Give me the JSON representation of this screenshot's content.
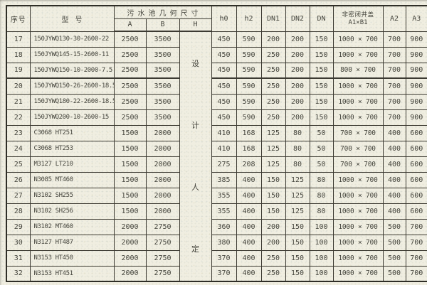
{
  "colors": {
    "paper": "#f0eee1",
    "grid": "#3c3a32",
    "text": "#45453d"
  },
  "table": {
    "header": {
      "serial": "序号",
      "model": "型号",
      "pool_dims_group": "污水池几何尺寸",
      "sub_a": "A",
      "sub_b": "B",
      "sub_h": "H",
      "h0": "h0",
      "h2": "h2",
      "dn1": "DN1",
      "dn2": "DN2",
      "dn": "DN",
      "cover_line1": "非密闭井盖",
      "cover_line2": "A1×B1",
      "a2": "A2",
      "a3": "A3"
    },
    "h_note_chars": [
      "设",
      "计",
      "人",
      "定"
    ],
    "rows": [
      [
        "17",
        "150JYWQ130-30-2600-22",
        "2500",
        "3500",
        "450",
        "590",
        "200",
        "200",
        "150",
        "1000 × 700",
        "700",
        "900"
      ],
      [
        "18",
        "150JYWQ145-15-2600-11",
        "2500",
        "3500",
        "450",
        "590",
        "250",
        "200",
        "150",
        "1000 × 700",
        "700",
        "900"
      ],
      [
        "19",
        "150JYWQ150-10-2000-7.5",
        "2500",
        "3500",
        "450",
        "590",
        "250",
        "200",
        "150",
        "800 × 700",
        "700",
        "900"
      ],
      [
        "20",
        "150JYWQ150-26-2600-18.5",
        "2500",
        "3500",
        "450",
        "590",
        "250",
        "200",
        "150",
        "1000 × 700",
        "700",
        "900"
      ],
      [
        "21",
        "150JYWQ180-22-2600-18.5",
        "2500",
        "3500",
        "450",
        "590",
        "250",
        "200",
        "150",
        "1000 × 700",
        "700",
        "900"
      ],
      [
        "22",
        "150JYWQ200-10-2600-15",
        "2500",
        "3500",
        "450",
        "590",
        "250",
        "200",
        "150",
        "1000 × 700",
        "700",
        "900"
      ],
      [
        "23",
        "C3068 HT251",
        "1500",
        "2000",
        "410",
        "168",
        "125",
        "80",
        "50",
        "700 × 700",
        "400",
        "600"
      ],
      [
        "24",
        "C3068 HT253",
        "1500",
        "2000",
        "410",
        "168",
        "125",
        "80",
        "50",
        "700 × 700",
        "400",
        "600"
      ],
      [
        "25",
        "M3127 LT210",
        "1500",
        "2000",
        "275",
        "208",
        "125",
        "80",
        "50",
        "700 × 700",
        "400",
        "600"
      ],
      [
        "26",
        "N3085 MT460",
        "1500",
        "2000",
        "385",
        "400",
        "150",
        "125",
        "80",
        "1000 × 700",
        "400",
        "600"
      ],
      [
        "27",
        "N3102 SH255",
        "1500",
        "2000",
        "355",
        "400",
        "150",
        "125",
        "80",
        "1000 × 700",
        "400",
        "600"
      ],
      [
        "28",
        "N3102 SH256",
        "1500",
        "2000",
        "355",
        "400",
        "150",
        "125",
        "80",
        "1000 × 700",
        "400",
        "600"
      ],
      [
        "29",
        "N3102 MT460",
        "2000",
        "2750",
        "360",
        "400",
        "200",
        "150",
        "100",
        "1000 × 700",
        "500",
        "700"
      ],
      [
        "30",
        "N3127 HT487",
        "2000",
        "2750",
        "380",
        "400",
        "200",
        "150",
        "100",
        "1000 × 700",
        "500",
        "700"
      ],
      [
        "31",
        "N3153 HT450",
        "2000",
        "2750",
        "370",
        "400",
        "250",
        "150",
        "100",
        "1000 × 700",
        "500",
        "700"
      ],
      [
        "32",
        "N3153 HT451",
        "2000",
        "2750",
        "370",
        "400",
        "250",
        "150",
        "100",
        "1000 × 700",
        "500",
        "700"
      ]
    ]
  }
}
